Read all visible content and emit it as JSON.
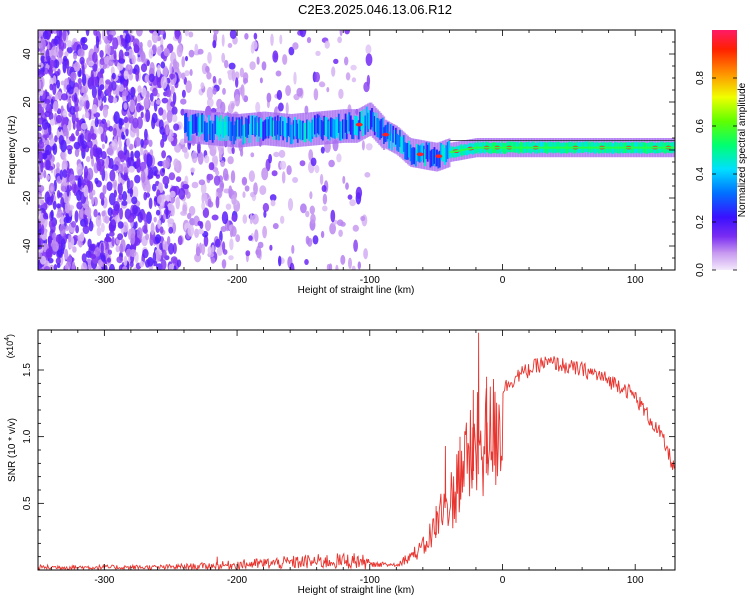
{
  "title": "C2E3.2025.046.13.06.R12",
  "chart_data": [
    {
      "type": "heatmap",
      "xlabel": "Height of straight line (km)",
      "ylabel": "Frequency (Hz)",
      "xlim": [
        -350,
        130
      ],
      "ylim": [
        -50,
        50
      ],
      "x_ticks": [
        "-300",
        "-200",
        "-100",
        "0",
        "100"
      ],
      "y_ticks": [
        "-40",
        "-20",
        "0",
        "20",
        "40"
      ],
      "colorbar": {
        "label": "Normalized spectral amplitude",
        "range": [
          0.0,
          1.0
        ],
        "ticks": [
          "0.0",
          "0.2",
          "0.4",
          "0.6",
          "0.8"
        ]
      },
      "ridge": {
        "x": [
          -240,
          -220,
          -200,
          -180,
          -160,
          -140,
          -120,
          -110,
          -100,
          -90,
          -80,
          -70,
          -60,
          -50,
          -40,
          -30,
          -20,
          -10,
          0,
          20,
          50,
          80,
          110,
          130
        ],
        "frequency": [
          10,
          9,
          8,
          9,
          8,
          9,
          10,
          10,
          13,
          7,
          4,
          -1,
          -2,
          -3,
          -1,
          0,
          1,
          1,
          1,
          1,
          1,
          1,
          1,
          1
        ]
      }
    },
    {
      "type": "line",
      "xlabel": "Height of straight line (km)",
      "ylabel": "SNR (10 * v/v)",
      "multiplier": "(x10",
      "multiplier_exp": "4",
      "xlim": [
        -350,
        130
      ],
      "ylim": [
        0,
        1.8
      ],
      "x_ticks": [
        "-300",
        "-200",
        "-100",
        "0",
        "100"
      ],
      "y_ticks": [
        "0.5",
        "1.0",
        "1.5"
      ],
      "color": "#e8352f",
      "envelope": {
        "x": [
          -350,
          -260,
          -220,
          -200,
          -150,
          -110,
          -100,
          -80,
          -70,
          -60,
          -50,
          -45,
          -40,
          -35,
          -30,
          -25,
          -20,
          -15,
          -10,
          0,
          10,
          20,
          30,
          40,
          50,
          60,
          70,
          80,
          90,
          100,
          110,
          120,
          130
        ],
        "y": [
          0.02,
          0.02,
          0.03,
          0.04,
          0.06,
          0.07,
          0.05,
          0.05,
          0.12,
          0.2,
          0.4,
          0.55,
          0.6,
          0.75,
          0.95,
          1.0,
          1.1,
          1.15,
          1.2,
          1.35,
          1.45,
          1.5,
          1.55,
          1.55,
          1.52,
          1.5,
          1.47,
          1.42,
          1.38,
          1.3,
          1.15,
          1.0,
          0.75
        ]
      },
      "spikes": [
        {
          "x": -215,
          "y": 0.1
        },
        {
          "x": -50,
          "y": 0.48
        },
        {
          "x": -43,
          "y": 0.93
        },
        {
          "x": -32,
          "y": 1.0
        },
        {
          "x": -22,
          "y": 1.35
        },
        {
          "x": -18,
          "y": 1.78
        },
        {
          "x": -12,
          "y": 1.45
        }
      ]
    }
  ]
}
